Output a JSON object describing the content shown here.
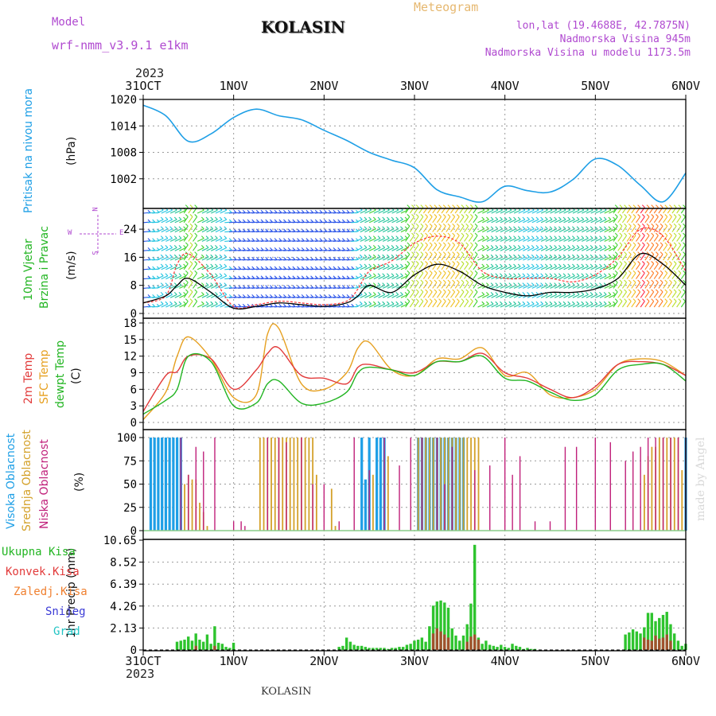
{
  "header": {
    "model_label": "Model",
    "model_name": "wrf-nmm_v3.9.1 e1km",
    "station": "KOLASIN",
    "meteogram_label": "Meteogram",
    "lonlat": "lon,lat (19.4688E, 42.7875N)",
    "elevation": "Nadmorska Visina 945m",
    "model_elevation": "Nadmorska Visina u modelu 1173.5m",
    "year_top": "2023",
    "year_bottom": "2023",
    "footer_station": "KOLASIN",
    "credit": "made by Angel"
  },
  "days": [
    "31OCT",
    "1NOV",
    "2NOV",
    "3NOV",
    "4NOV",
    "5NOV",
    "6NOV"
  ],
  "panel_labels": {
    "pressure": [
      {
        "text": "Pritisak na nivou mora",
        "color": "#1e9fe6"
      }
    ],
    "pressure_unit": "(hPa)",
    "wind": [
      {
        "text": "10m Vjetar",
        "color": "#22b522"
      },
      {
        "text": "Brzina i Pravac",
        "color": "#22b522"
      }
    ],
    "wind_unit": "(m/s)",
    "compass": {
      "n": "N",
      "s": "S",
      "w": "W",
      "e": "E",
      "color": "#b04ad0"
    },
    "temp": [
      {
        "text": "2m Temp",
        "color": "#e23b3b"
      },
      {
        "text": "SFC Temp",
        "color": "#e6a020"
      },
      {
        "text": "dewpt Temp",
        "color": "#22b522"
      }
    ],
    "temp_unit": "(C)",
    "cloud": [
      {
        "text": "Visoka Oblacnost",
        "color": "#1e9fe6"
      },
      {
        "text": "Srednja Oblacnost",
        "color": "#d4a12a"
      },
      {
        "text": "Niska Oblacnost",
        "color": "#c0207a"
      }
    ],
    "cloud_unit": "(%)",
    "precip_unit": "1hr Precip (mm)",
    "precip_legend": [
      {
        "text": "Ukupna Kisa",
        "color": "#22b522"
      },
      {
        "text": "Konvek.Kisa",
        "color": "#e23b3b"
      },
      {
        "text": "Zaledj.Kisa",
        "color": "#f08030"
      },
      {
        "text": "Snijeg",
        "color": "#3b3bd6"
      },
      {
        "text": "Grad",
        "color": "#22c4c4"
      }
    ]
  },
  "colors": {
    "pressure": "#1e9fe6",
    "wind_speed": "#000000",
    "wind_gust": "#ff3333",
    "t2m": "#e23b3b",
    "tsfc": "#e6a020",
    "dewpt": "#22b522",
    "cloud_high": "#1e9fe6",
    "cloud_mid": "#d4a12a",
    "cloud_low": "#c0207a",
    "precip_total": "#2ec42e",
    "precip_conv": "#a0522d"
  },
  "chart_data": [
    {
      "type": "line",
      "panel": "pressure",
      "ylabel": "(hPa)",
      "yticks": [
        1002,
        1008,
        1014,
        1020
      ],
      "ylim": [
        996,
        1020
      ],
      "x_unit": "hours since 31OCT 00",
      "x": [
        0,
        6,
        12,
        18,
        24,
        30,
        36,
        42,
        48,
        54,
        60,
        66,
        72,
        78,
        84,
        90,
        96,
        102,
        108,
        114,
        120,
        126,
        132,
        138,
        144
      ],
      "values": [
        1018.7,
        1016.3,
        1010.5,
        1012.2,
        1015.9,
        1017.8,
        1016.3,
        1015.4,
        1013.0,
        1010.7,
        1008.0,
        1006.2,
        1004.5,
        999.5,
        997.9,
        996.8,
        1000.3,
        999.3,
        999.0,
        1001.8,
        1006.5,
        1005.0,
        1000.5,
        996.8,
        1003.3
      ]
    },
    {
      "type": "line",
      "panel": "wind",
      "ylabel": "(m/s)",
      "yticks": [
        0,
        8,
        16,
        24
      ],
      "ylim": [
        0,
        29
      ],
      "x_unit": "hours since 31OCT 00",
      "series": [
        {
          "name": "speed",
          "x": [
            0,
            6,
            9,
            12,
            18,
            24,
            30,
            36,
            42,
            48,
            54,
            57,
            60,
            66,
            72,
            78,
            84,
            90,
            96,
            102,
            108,
            114,
            120,
            126,
            132,
            138,
            144
          ],
          "values": [
            3,
            5,
            8,
            10,
            6,
            1.5,
            2,
            3,
            2.5,
            2,
            3,
            5,
            8,
            6,
            11,
            14,
            12,
            8,
            6,
            5,
            6,
            6,
            7,
            10,
            17,
            14,
            8
          ]
        },
        {
          "name": "gust",
          "x": [
            0,
            6,
            9,
            12,
            18,
            24,
            30,
            36,
            42,
            48,
            54,
            57,
            60,
            66,
            72,
            78,
            84,
            90,
            96,
            102,
            108,
            114,
            120,
            126,
            132,
            138,
            144
          ],
          "values": [
            3,
            5,
            14,
            17,
            11,
            2,
            2.5,
            3.5,
            3,
            2.5,
            3.5,
            7,
            12,
            15,
            20,
            22,
            20,
            12,
            10,
            10,
            10,
            9,
            11,
            16,
            24,
            22,
            12
          ]
        }
      ]
    },
    {
      "type": "line",
      "panel": "temperature",
      "ylabel": "(C)",
      "yticks": [
        0,
        3,
        6,
        9,
        12,
        15,
        18
      ],
      "ylim": [
        0,
        18
      ],
      "x_unit": "hours since 31OCT 00",
      "series": [
        {
          "name": "2m Temp",
          "x": [
            0,
            6,
            9,
            12,
            18,
            24,
            30,
            33,
            36,
            42,
            48,
            54,
            57,
            60,
            66,
            72,
            78,
            84,
            90,
            96,
            102,
            108,
            114,
            120,
            126,
            132,
            138,
            144
          ],
          "values": [
            2,
            8.5,
            9.2,
            12.0,
            11.5,
            6.0,
            9.5,
            12.5,
            13.5,
            8.5,
            8.0,
            7.0,
            10.0,
            10.5,
            9.5,
            9.0,
            11.0,
            11.0,
            12.5,
            9.0,
            8.0,
            6.0,
            4.5,
            6.5,
            10.5,
            11.0,
            10.5,
            8.5
          ]
        },
        {
          "name": "SFC Temp",
          "x": [
            0,
            6,
            9,
            12,
            18,
            24,
            30,
            33,
            36,
            42,
            48,
            54,
            57,
            60,
            66,
            72,
            78,
            84,
            90,
            96,
            102,
            108,
            114,
            120,
            126,
            132,
            138,
            144
          ],
          "values": [
            0.5,
            5.5,
            12,
            15.5,
            11.5,
            4.5,
            5,
            16,
            17,
            7,
            6,
            9,
            13.5,
            14.5,
            9.5,
            8.5,
            11.5,
            11.5,
            13.5,
            8.5,
            9,
            5,
            4.5,
            6,
            10.5,
            11.5,
            11,
            8.5
          ]
        },
        {
          "name": "dewpt Temp",
          "x": [
            0,
            6,
            9,
            12,
            18,
            24,
            30,
            33,
            36,
            42,
            48,
            54,
            57,
            60,
            66,
            72,
            78,
            84,
            90,
            96,
            102,
            108,
            114,
            120,
            126,
            132,
            138,
            144
          ],
          "values": [
            1.5,
            4,
            6,
            12,
            11,
            3,
            3.5,
            7,
            7.5,
            3.5,
            3.5,
            5.5,
            9,
            10,
            9.5,
            8.5,
            11.0,
            11.0,
            12.0,
            8,
            7.5,
            5.5,
            4,
            5,
            9.5,
            10.5,
            10.5,
            7.5
          ]
        }
      ]
    },
    {
      "type": "bar",
      "panel": "cloud",
      "ylabel": "(%)",
      "yticks": [
        0,
        25,
        50,
        75,
        100
      ],
      "ylim": [
        0,
        100
      ],
      "x_unit": "hours since 31OCT 00",
      "series": [
        {
          "name": "Visoka Oblacnost",
          "x": [
            2,
            3,
            4,
            5,
            6,
            7,
            8,
            9,
            10,
            58,
            59,
            60,
            62,
            63,
            64,
            73,
            74,
            75,
            76,
            77,
            78,
            79,
            80,
            81,
            82,
            83,
            84,
            85,
            144
          ],
          "values": [
            100,
            100,
            100,
            100,
            100,
            100,
            100,
            100,
            100,
            100,
            55,
            100,
            100,
            100,
            100,
            100,
            100,
            100,
            100,
            100,
            100,
            100,
            100,
            100,
            100,
            100,
            100,
            100,
            100
          ]
        },
        {
          "name": "Srednja Oblacnost",
          "x": [
            11,
            12,
            13,
            14,
            15,
            16,
            17,
            31,
            32,
            33,
            34,
            35,
            36,
            37,
            38,
            39,
            40,
            41,
            42,
            43,
            44,
            45,
            46,
            50,
            51,
            61,
            65,
            73,
            74,
            75,
            76,
            77,
            78,
            79,
            80,
            81,
            82,
            83,
            84,
            85,
            86,
            87,
            88,
            89,
            133,
            134,
            135,
            136,
            137,
            138,
            139,
            140,
            141,
            142,
            143
          ],
          "values": [
            50,
            60,
            55,
            55,
            30,
            20,
            5,
            100,
            100,
            100,
            100,
            100,
            100,
            100,
            100,
            100,
            100,
            100,
            100,
            100,
            100,
            100,
            60,
            45,
            5,
            60,
            80,
            100,
            100,
            100,
            100,
            100,
            100,
            100,
            100,
            100,
            100,
            100,
            100,
            100,
            100,
            100,
            100,
            100,
            60,
            80,
            90,
            90,
            100,
            100,
            100,
            100,
            100,
            100,
            65
          ]
        },
        {
          "name": "Niska Oblacnost",
          "x": [
            10,
            12,
            14,
            16,
            19,
            24,
            26,
            27,
            33,
            36,
            38,
            42,
            45,
            48,
            52,
            56,
            60,
            64,
            68,
            71,
            74,
            78,
            80,
            82,
            88,
            92,
            96,
            98,
            100,
            104,
            108,
            112,
            115,
            120,
            124,
            128,
            130,
            132,
            134,
            136,
            138,
            140,
            142,
            144
          ],
          "values": [
            100,
            60,
            90,
            85,
            100,
            10,
            10,
            5,
            100,
            100,
            95,
            100,
            50,
            50,
            10,
            100,
            65,
            100,
            70,
            100,
            100,
            100,
            50,
            90,
            65,
            70,
            100,
            60,
            80,
            10,
            10,
            90,
            90,
            100,
            95,
            75,
            85,
            90,
            100,
            100,
            100,
            100,
            100,
            100
          ]
        }
      ]
    },
    {
      "type": "bar",
      "panel": "precipitation",
      "ylabel": "1hr Precip (mm)",
      "yticks": [
        0,
        2.13,
        4.26,
        6.39,
        8.52,
        10.65
      ],
      "ylim": [
        0,
        10.65
      ],
      "x_unit": "hours since 31OCT 00",
      "series": [
        {
          "name": "Ukupna Kisa",
          "x": [
            9,
            10,
            11,
            12,
            13,
            14,
            15,
            16,
            17,
            18,
            19,
            20,
            21,
            22,
            23,
            24,
            52,
            53,
            54,
            55,
            56,
            57,
            58,
            59,
            60,
            61,
            62,
            63,
            64,
            65,
            66,
            67,
            68,
            69,
            70,
            71,
            72,
            73,
            74,
            75,
            76,
            77,
            78,
            79,
            80,
            81,
            82,
            83,
            84,
            85,
            86,
            87,
            88,
            89,
            90,
            91,
            92,
            93,
            94,
            95,
            96,
            97,
            98,
            99,
            100,
            101,
            102,
            103,
            104,
            128,
            129,
            130,
            131,
            132,
            133,
            134,
            135,
            136,
            137,
            138,
            139,
            140,
            141,
            142,
            143,
            144
          ],
          "values": [
            0.8,
            0.9,
            1.0,
            1.3,
            0.9,
            1.6,
            1.0,
            0.8,
            1.5,
            0.6,
            2.3,
            0.7,
            0.6,
            0.3,
            0.2,
            0.7,
            0.3,
            0.4,
            1.2,
            0.8,
            0.5,
            0.4,
            0.4,
            0.3,
            0.2,
            0.2,
            0.2,
            0.2,
            0.2,
            0.1,
            0.2,
            0.2,
            0.3,
            0.3,
            0.5,
            0.6,
            0.9,
            1.0,
            1.2,
            0.8,
            2.3,
            4.3,
            4.7,
            4.8,
            4.6,
            4.1,
            2.1,
            1.4,
            0.9,
            1.4,
            2.5,
            4.5,
            10.2,
            1.2,
            0.6,
            0.9,
            0.5,
            0.4,
            0.3,
            0.5,
            0.3,
            0.2,
            0.6,
            0.4,
            0.3,
            0.1,
            0.2,
            0.1,
            0.1,
            1.5,
            1.7,
            2.0,
            1.8,
            1.6,
            2.2,
            3.6,
            3.6,
            2.8,
            3.1,
            3.4,
            3.7,
            2.5,
            1.6,
            0.9,
            0.4,
            0.6
          ]
        },
        {
          "name": "Konvek.Kisa",
          "x": [
            14,
            19,
            77,
            78,
            79,
            80,
            81,
            86,
            87,
            88,
            89,
            133,
            134,
            135,
            136,
            137,
            138,
            139,
            140
          ],
          "values": [
            0.4,
            0.4,
            1.6,
            2.1,
            1.8,
            1.5,
            1.2,
            0.8,
            1.3,
            1.5,
            1.0,
            1.2,
            1.0,
            0.9,
            1.4,
            1.1,
            1.2,
            1.5,
            0.9
          ]
        }
      ]
    }
  ]
}
